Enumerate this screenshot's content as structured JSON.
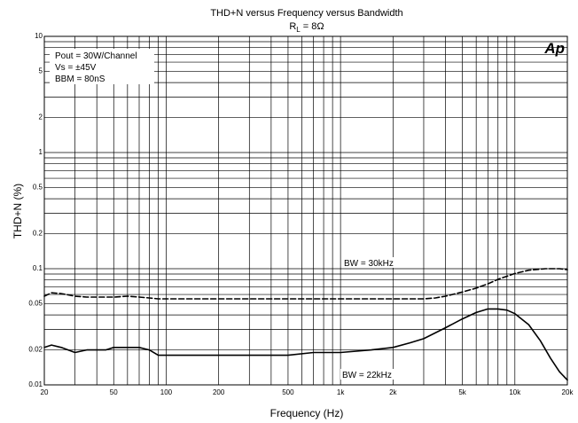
{
  "chart_data": {
    "type": "line",
    "title": "THD+N versus Frequency versus Bandwidth",
    "subtitle_prefix": "R",
    "subtitle_sub": "L",
    "subtitle_suffix": " = 8Ω",
    "xlabel": "Frequency (Hz)",
    "ylabel": "THD+N (%)",
    "xscale": "log",
    "yscale": "log",
    "xlim": [
      20,
      20000
    ],
    "ylim": [
      0.01,
      10
    ],
    "grid": true,
    "logo_text": "Ap",
    "x_ticks": [
      {
        "value": 20,
        "label": "20"
      },
      {
        "value": 50,
        "label": "50"
      },
      {
        "value": 100,
        "label": "100"
      },
      {
        "value": 200,
        "label": "200"
      },
      {
        "value": 500,
        "label": "500"
      },
      {
        "value": 1000,
        "label": "1k"
      },
      {
        "value": 2000,
        "label": "2k"
      },
      {
        "value": 5000,
        "label": "5k"
      },
      {
        "value": 10000,
        "label": "10k"
      },
      {
        "value": 20000,
        "label": "20k"
      }
    ],
    "y_ticks": [
      {
        "value": 10,
        "label": "10"
      },
      {
        "value": 5,
        "label": "5"
      },
      {
        "value": 2,
        "label": "2"
      },
      {
        "value": 1,
        "label": "1"
      },
      {
        "value": 0.5,
        "label": "0.5"
      },
      {
        "value": 0.2,
        "label": "0.2"
      },
      {
        "value": 0.1,
        "label": "0.1"
      },
      {
        "value": 0.05,
        "label": "0.05"
      },
      {
        "value": 0.02,
        "label": "0.02"
      },
      {
        "value": 0.01,
        "label": "0.01"
      }
    ],
    "conditions": [
      "Pout = 30W/Channel",
      "Vs = ±45V",
      "BBM = 80nS"
    ],
    "series": [
      {
        "name": "BW = 30kHz",
        "style": "dashed",
        "color": "#000000",
        "x": [
          20,
          22,
          25,
          30,
          35,
          40,
          50,
          60,
          70,
          80,
          90,
          100,
          150,
          200,
          300,
          500,
          700,
          1000,
          1500,
          2000,
          2500,
          3000,
          3500,
          4000,
          5000,
          6000,
          7000,
          8000,
          10000,
          12000,
          15000,
          18000,
          20000
        ],
        "values": [
          0.058,
          0.062,
          0.061,
          0.058,
          0.057,
          0.057,
          0.057,
          0.058,
          0.057,
          0.056,
          0.055,
          0.055,
          0.055,
          0.055,
          0.055,
          0.055,
          0.055,
          0.055,
          0.055,
          0.055,
          0.055,
          0.055,
          0.056,
          0.058,
          0.063,
          0.068,
          0.074,
          0.081,
          0.091,
          0.097,
          0.1,
          0.1,
          0.098
        ]
      },
      {
        "name": "BW = 22kHz",
        "style": "solid",
        "color": "#000000",
        "x": [
          20,
          22,
          25,
          30,
          35,
          40,
          45,
          50,
          60,
          70,
          80,
          90,
          100,
          150,
          200,
          300,
          500,
          700,
          1000,
          1500,
          2000,
          2500,
          3000,
          4000,
          5000,
          6000,
          7000,
          8000,
          9000,
          10000,
          12000,
          14000,
          16000,
          18000,
          20000
        ],
        "values": [
          0.021,
          0.022,
          0.021,
          0.019,
          0.02,
          0.02,
          0.02,
          0.021,
          0.021,
          0.021,
          0.02,
          0.018,
          0.018,
          0.018,
          0.018,
          0.018,
          0.018,
          0.019,
          0.019,
          0.02,
          0.021,
          0.023,
          0.025,
          0.031,
          0.037,
          0.042,
          0.045,
          0.045,
          0.044,
          0.041,
          0.033,
          0.024,
          0.017,
          0.013,
          0.011
        ]
      }
    ]
  }
}
